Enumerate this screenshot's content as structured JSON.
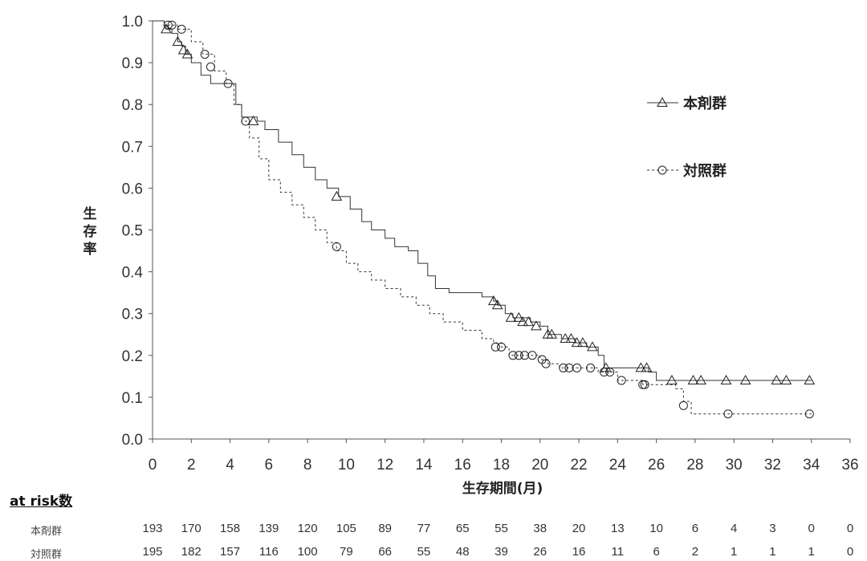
{
  "chart_data": {
    "type": "line",
    "xlabel": "生存期間(月)",
    "ylabel": "生存率",
    "xlim": [
      0,
      36
    ],
    "ylim": [
      0.0,
      1.0
    ],
    "x_ticks": [
      0,
      2,
      4,
      6,
      8,
      10,
      12,
      14,
      16,
      18,
      20,
      22,
      24,
      26,
      28,
      30,
      32,
      34,
      36
    ],
    "y_ticks": [
      "0.0",
      "0.1",
      "0.2",
      "0.3",
      "0.4",
      "0.5",
      "0.6",
      "0.7",
      "0.8",
      "0.9",
      "1.0"
    ],
    "grid": false,
    "legend_position": "right",
    "series": [
      {
        "name": "本剤群",
        "line_style": "solid",
        "marker": "triangle",
        "steps": [
          [
            0,
            1.0
          ],
          [
            0.6,
            0.99
          ],
          [
            0.7,
            0.98
          ],
          [
            1.0,
            0.97
          ],
          [
            1.3,
            0.95
          ],
          [
            1.5,
            0.94
          ],
          [
            1.7,
            0.92
          ],
          [
            2.0,
            0.9
          ],
          [
            2.5,
            0.87
          ],
          [
            3.0,
            0.85
          ],
          [
            3.8,
            0.85
          ],
          [
            4.3,
            0.8
          ],
          [
            4.6,
            0.77
          ],
          [
            5.4,
            0.76
          ],
          [
            5.8,
            0.74
          ],
          [
            6.5,
            0.71
          ],
          [
            7.2,
            0.68
          ],
          [
            7.8,
            0.65
          ],
          [
            8.4,
            0.62
          ],
          [
            9.0,
            0.6
          ],
          [
            9.6,
            0.58
          ],
          [
            10.2,
            0.55
          ],
          [
            10.8,
            0.52
          ],
          [
            11.3,
            0.5
          ],
          [
            12.0,
            0.48
          ],
          [
            12.5,
            0.46
          ],
          [
            13.2,
            0.45
          ],
          [
            13.7,
            0.42
          ],
          [
            14.2,
            0.39
          ],
          [
            14.6,
            0.36
          ],
          [
            15.3,
            0.35
          ],
          [
            17.0,
            0.34
          ],
          [
            17.6,
            0.33
          ],
          [
            17.8,
            0.32
          ],
          [
            18.2,
            0.3
          ],
          [
            18.6,
            0.29
          ],
          [
            19.5,
            0.28
          ],
          [
            20.0,
            0.27
          ],
          [
            20.4,
            0.25
          ],
          [
            21.1,
            0.24
          ],
          [
            21.8,
            0.23
          ],
          [
            22.4,
            0.22
          ],
          [
            23.0,
            0.2
          ],
          [
            23.3,
            0.17
          ],
          [
            25.6,
            0.16
          ],
          [
            26.0,
            0.14
          ],
          [
            34.0,
            0.14
          ]
        ],
        "censor": [
          [
            0.7,
            0.98
          ],
          [
            1.3,
            0.95
          ],
          [
            1.6,
            0.93
          ],
          [
            1.8,
            0.92
          ],
          [
            5.2,
            0.76
          ],
          [
            9.5,
            0.58
          ],
          [
            17.6,
            0.33
          ],
          [
            17.8,
            0.32
          ],
          [
            18.5,
            0.29
          ],
          [
            18.9,
            0.29
          ],
          [
            19.1,
            0.28
          ],
          [
            19.4,
            0.28
          ],
          [
            19.8,
            0.27
          ],
          [
            20.4,
            0.25
          ],
          [
            20.6,
            0.25
          ],
          [
            21.3,
            0.24
          ],
          [
            21.6,
            0.24
          ],
          [
            21.9,
            0.23
          ],
          [
            22.2,
            0.23
          ],
          [
            22.7,
            0.22
          ],
          [
            23.4,
            0.17
          ],
          [
            25.2,
            0.17
          ],
          [
            25.5,
            0.17
          ],
          [
            26.8,
            0.14
          ],
          [
            27.9,
            0.14
          ],
          [
            28.3,
            0.14
          ],
          [
            29.6,
            0.14
          ],
          [
            30.6,
            0.14
          ],
          [
            32.2,
            0.14
          ],
          [
            32.7,
            0.14
          ],
          [
            33.9,
            0.14
          ]
        ]
      },
      {
        "name": "対照群",
        "line_style": "dashed",
        "marker": "circle",
        "steps": [
          [
            0,
            1.0
          ],
          [
            0.6,
            0.99
          ],
          [
            1.3,
            0.98
          ],
          [
            2.0,
            0.95
          ],
          [
            2.6,
            0.92
          ],
          [
            3.2,
            0.88
          ],
          [
            3.8,
            0.85
          ],
          [
            4.2,
            0.8
          ],
          [
            4.6,
            0.76
          ],
          [
            5.0,
            0.72
          ],
          [
            5.5,
            0.67
          ],
          [
            6.0,
            0.62
          ],
          [
            6.6,
            0.59
          ],
          [
            7.2,
            0.56
          ],
          [
            7.8,
            0.53
          ],
          [
            8.4,
            0.5
          ],
          [
            9.0,
            0.47
          ],
          [
            9.5,
            0.45
          ],
          [
            10.0,
            0.42
          ],
          [
            10.6,
            0.4
          ],
          [
            11.3,
            0.38
          ],
          [
            12.0,
            0.36
          ],
          [
            12.8,
            0.34
          ],
          [
            13.6,
            0.32
          ],
          [
            14.3,
            0.3
          ],
          [
            15.0,
            0.28
          ],
          [
            16.0,
            0.26
          ],
          [
            17.0,
            0.24
          ],
          [
            17.6,
            0.23
          ],
          [
            18.0,
            0.22
          ],
          [
            18.4,
            0.2
          ],
          [
            20.0,
            0.19
          ],
          [
            20.4,
            0.18
          ],
          [
            21.0,
            0.17
          ],
          [
            23.0,
            0.16
          ],
          [
            24.0,
            0.14
          ],
          [
            25.3,
            0.13
          ],
          [
            27.0,
            0.12
          ],
          [
            27.4,
            0.09
          ],
          [
            27.8,
            0.06
          ],
          [
            34.0,
            0.06
          ]
        ],
        "censor": [
          [
            0.8,
            0.99
          ],
          [
            1.0,
            0.99
          ],
          [
            1.5,
            0.98
          ],
          [
            2.7,
            0.92
          ],
          [
            3.0,
            0.89
          ],
          [
            3.9,
            0.85
          ],
          [
            4.8,
            0.76
          ],
          [
            9.5,
            0.46
          ],
          [
            17.7,
            0.22
          ],
          [
            18.0,
            0.22
          ],
          [
            18.6,
            0.2
          ],
          [
            18.9,
            0.2
          ],
          [
            19.2,
            0.2
          ],
          [
            19.6,
            0.2
          ],
          [
            20.1,
            0.19
          ],
          [
            20.3,
            0.18
          ],
          [
            21.2,
            0.17
          ],
          [
            21.5,
            0.17
          ],
          [
            21.9,
            0.17
          ],
          [
            22.6,
            0.17
          ],
          [
            23.3,
            0.16
          ],
          [
            23.6,
            0.16
          ],
          [
            24.2,
            0.14
          ],
          [
            25.3,
            0.13
          ],
          [
            25.4,
            0.13
          ],
          [
            27.4,
            0.08
          ],
          [
            29.7,
            0.06
          ],
          [
            33.9,
            0.06
          ]
        ]
      }
    ]
  },
  "at_risk": {
    "title": "at risk数",
    "rows": [
      {
        "label": "本剤群",
        "values": [
          "193",
          "170",
          "158",
          "139",
          "120",
          "105",
          "89",
          "77",
          "65",
          "55",
          "38",
          "20",
          "13",
          "10",
          "6",
          "4",
          "3",
          "0",
          "0"
        ]
      },
      {
        "label": "対照群",
        "values": [
          "195",
          "182",
          "157",
          "116",
          "100",
          "79",
          "66",
          "55",
          "48",
          "39",
          "26",
          "16",
          "11",
          "6",
          "2",
          "1",
          "1",
          "1",
          "0"
        ]
      }
    ]
  }
}
